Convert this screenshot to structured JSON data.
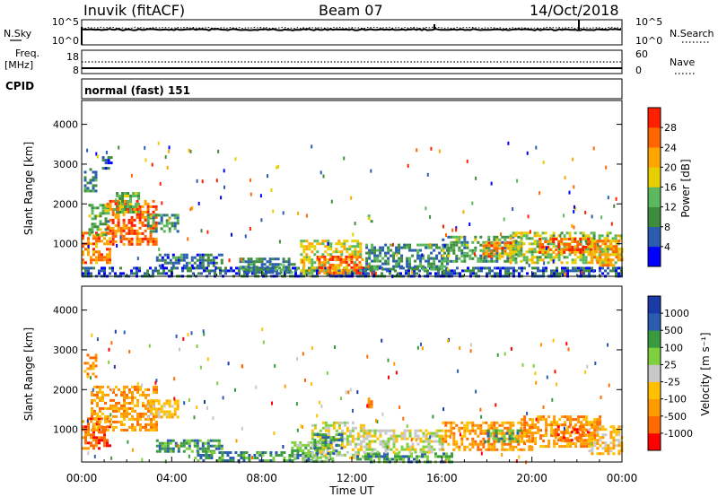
{
  "header": {
    "station": "Inuvik (fitACF)",
    "beam": "Beam 07",
    "date": "14/Oct/2018"
  },
  "noise_panel": {
    "left_label": "N.Sky",
    "left_ticks": [
      "10^5",
      "10^0"
    ],
    "right_label": "N.Search",
    "right_ticks": [
      "10^5",
      "10^0"
    ]
  },
  "freq_panel": {
    "left_label_1": "Freq.",
    "left_label_2": "[MHz]",
    "left_ticks": [
      "18",
      "8"
    ],
    "right_label": "Nave",
    "right_ticks": [
      "60",
      "0"
    ]
  },
  "cpid": {
    "label": "CPID",
    "value": "normal (fast) 151"
  },
  "colors": {
    "power": [
      "#0000ff",
      "#2a5cb0",
      "#3e8c3e",
      "#5cb85c",
      "#e8d000",
      "#ffa500",
      "#ff6600",
      "#ff2000"
    ],
    "velocity": [
      "#ff0000",
      "#ff6a00",
      "#ff9a00",
      "#ffc000",
      "#c8c8c8",
      "#7ed03e",
      "#3a9a40",
      "#2a5cb0",
      "#1a3aa8"
    ],
    "ground": "#bdbdbd"
  },
  "chart_data": [
    {
      "type": "heatmap",
      "name": "power",
      "xlabel": "",
      "ylabel": "Slant Range [km]",
      "x_range_hours": [
        0,
        24
      ],
      "ylim": [
        180,
        4600
      ],
      "y_ticks": [
        "1000",
        "2000",
        "3000",
        "4000"
      ],
      "colorbar_label": "Power [dB]",
      "colorbar_ticks": [
        "4",
        "8",
        "12",
        "16",
        "20",
        "24",
        "28"
      ],
      "colorbar_range": [
        0,
        30
      ],
      "regions": [
        {
          "t0": 0.0,
          "t1": 1.3,
          "r0": 500,
          "r1": 1300,
          "v": 24
        },
        {
          "t0": 0.3,
          "t1": 1.2,
          "r0": 1200,
          "r1": 2000,
          "v": 12
        },
        {
          "t0": 1.1,
          "t1": 3.3,
          "r0": 1000,
          "r1": 2100,
          "v": 26
        },
        {
          "t0": 1.4,
          "t1": 2.5,
          "r0": 1800,
          "r1": 2300,
          "v": 14
        },
        {
          "t0": 2.9,
          "t1": 4.3,
          "r0": 1300,
          "r1": 1750,
          "v": 10
        },
        {
          "t0": 0.1,
          "t1": 0.6,
          "r0": 2300,
          "r1": 2900,
          "v": 9
        },
        {
          "t0": 0.9,
          "t1": 1.3,
          "r0": 2900,
          "r1": 3200,
          "v": 6
        },
        {
          "t0": 3.3,
          "t1": 6.2,
          "r0": 450,
          "r1": 750,
          "v": 8
        },
        {
          "t0": 0.0,
          "t1": 24.0,
          "r0": 200,
          "r1": 420,
          "v": 6
        },
        {
          "t0": 7.0,
          "t1": 9.5,
          "r0": 300,
          "r1": 650,
          "v": 9
        },
        {
          "t0": 9.7,
          "t1": 12.4,
          "r0": 280,
          "r1": 1100,
          "v": 18
        },
        {
          "t0": 10.5,
          "t1": 12.5,
          "r0": 250,
          "r1": 700,
          "v": 26
        },
        {
          "t0": 12.6,
          "t1": 16.2,
          "r0": 350,
          "r1": 1000,
          "v": 10
        },
        {
          "t0": 12.7,
          "t1": 12.9,
          "r0": 1500,
          "r1": 1800,
          "v": 14
        },
        {
          "t0": 16.0,
          "t1": 19.5,
          "r0": 550,
          "r1": 1200,
          "v": 12
        },
        {
          "t0": 17.8,
          "t1": 19.3,
          "r0": 650,
          "r1": 1050,
          "v": 24
        },
        {
          "t0": 19.0,
          "t1": 24.0,
          "r0": 500,
          "r1": 1300,
          "v": 16
        },
        {
          "t0": 20.3,
          "t1": 22.6,
          "r0": 750,
          "r1": 1150,
          "v": 28
        },
        {
          "t0": 22.5,
          "t1": 24.0,
          "r0": 450,
          "r1": 1100,
          "v": 22
        }
      ]
    },
    {
      "type": "heatmap",
      "name": "velocity",
      "xlabel": "Time UT",
      "ylabel": "Slant Range [km]",
      "x_range_hours": [
        0,
        24
      ],
      "x_ticks": [
        "00:00",
        "04:00",
        "08:00",
        "12:00",
        "16:00",
        "20:00",
        "00:00"
      ],
      "ylim": [
        180,
        4600
      ],
      "y_ticks": [
        "1000",
        "2000",
        "3000",
        "4000"
      ],
      "colorbar_label": "Velocity [m s⁻¹]",
      "colorbar_ticks": [
        "1000",
        "500",
        "100",
        "25",
        "-25",
        "-100",
        "-500",
        "-1000"
      ],
      "regions": [
        {
          "t0": 0.0,
          "t1": 1.3,
          "r0": 500,
          "r1": 1300,
          "v": 1
        },
        {
          "t0": 0.1,
          "t1": 0.6,
          "r0": 2300,
          "r1": 2900,
          "v": 2
        },
        {
          "t0": 0.4,
          "t1": 3.3,
          "r0": 1000,
          "r1": 2100,
          "v": 2
        },
        {
          "t0": 2.9,
          "t1": 4.3,
          "r0": 1300,
          "r1": 1750,
          "v": 3
        },
        {
          "t0": 3.3,
          "t1": 6.2,
          "r0": 450,
          "r1": 750,
          "v": 6
        },
        {
          "t0": 5.0,
          "t1": 10.5,
          "r0": 200,
          "r1": 450,
          "v": 6
        },
        {
          "t0": 9.3,
          "t1": 11.2,
          "r0": 200,
          "r1": 700,
          "v": 5
        },
        {
          "t0": 10.2,
          "t1": 12.5,
          "r0": 300,
          "r1": 1200,
          "v": 4
        },
        {
          "t0": 10.3,
          "t1": 11.5,
          "r0": 400,
          "r1": 900,
          "v": 6
        },
        {
          "t0": 12.2,
          "t1": 16.5,
          "r0": 200,
          "r1": 420,
          "v": 6
        },
        {
          "t0": 12.5,
          "t1": 16.0,
          "r0": 400,
          "r1": 1000,
          "v": 4
        },
        {
          "t0": 12.7,
          "t1": 12.9,
          "r0": 1500,
          "r1": 1800,
          "v": 1
        },
        {
          "t0": 16.0,
          "t1": 20.0,
          "r0": 500,
          "r1": 1200,
          "v": 2
        },
        {
          "t0": 18.0,
          "t1": 19.5,
          "r0": 700,
          "r1": 1000,
          "v": 6
        },
        {
          "t0": 19.5,
          "t1": 23.0,
          "r0": 600,
          "r1": 1350,
          "v": 2
        },
        {
          "t0": 21.0,
          "t1": 22.5,
          "r0": 700,
          "r1": 1100,
          "v": 1
        },
        {
          "t0": 22.5,
          "t1": 24.0,
          "r0": 400,
          "r1": 1100,
          "v": 3
        }
      ]
    }
  ]
}
